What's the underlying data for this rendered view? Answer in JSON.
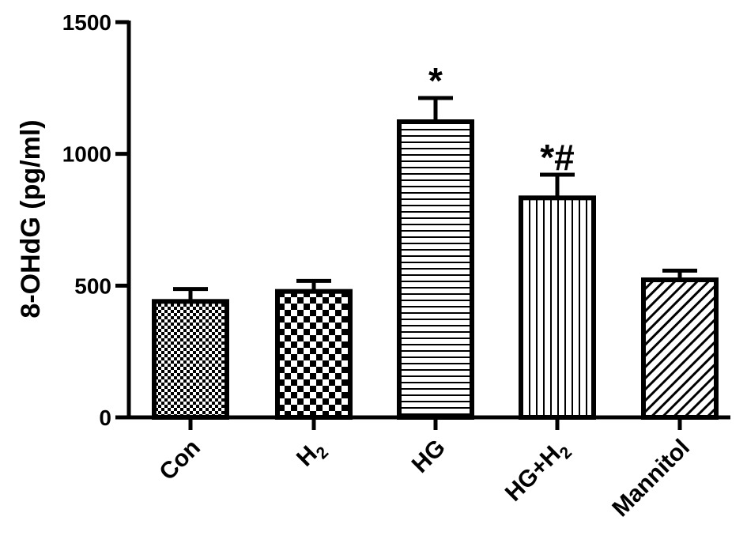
{
  "chart_data": {
    "type": "bar",
    "title": "",
    "xlabel": "",
    "ylabel": "8-OHdG (pg/ml)",
    "ylim": [
      0,
      1500
    ],
    "yticks": [
      0,
      500,
      1000,
      1500
    ],
    "ytick_labels": [
      "0",
      "500",
      "1000",
      "1500"
    ],
    "grid": false,
    "categories": [
      {
        "main": "Con",
        "sub": "",
        "suffix": ""
      },
      {
        "main": "H",
        "sub": "2",
        "suffix": ""
      },
      {
        "main": "HG",
        "sub": "",
        "suffix": ""
      },
      {
        "main": "HG+H",
        "sub": "2",
        "suffix": ""
      },
      {
        "main": "Mannitol",
        "sub": "",
        "suffix": ""
      }
    ],
    "values": [
      440,
      478,
      1122,
      833,
      522
    ],
    "errors": [
      47,
      40,
      90,
      88,
      35
    ],
    "patterns": [
      "fine-checker",
      "checker",
      "horizontal-lines",
      "vertical-lines",
      "diagonal-lines"
    ],
    "annotations": [
      "",
      "",
      "*",
      "*#",
      ""
    ],
    "colors": {
      "bar_stroke": "#000000",
      "fill": "#ffffff",
      "pattern": "#000000"
    }
  }
}
